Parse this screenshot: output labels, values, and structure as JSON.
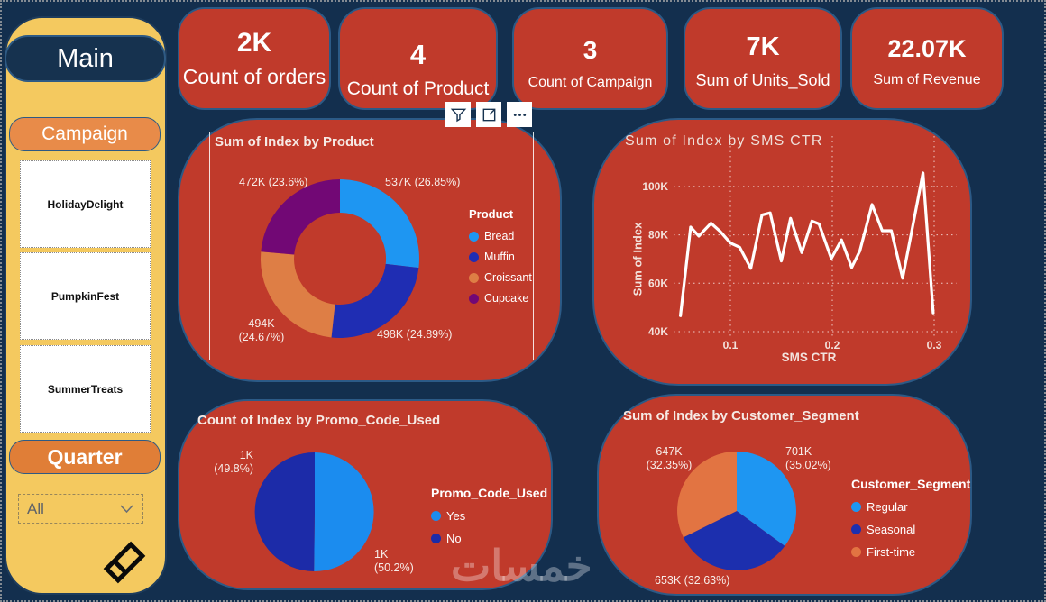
{
  "page": {
    "watermark": "خمسات"
  },
  "sidebar": {
    "main_label": "Main",
    "campaign_label": "Campaign",
    "campaign_items": [
      "HolidayDelight",
      "PumpkinFest",
      "SummerTreats"
    ],
    "quarter_label": "Quarter",
    "quarter_dropdown_value": "All"
  },
  "kpis": [
    {
      "value": "2K",
      "label": "Count of orders"
    },
    {
      "value": "4",
      "label": "Count of Product"
    },
    {
      "value": "3",
      "label": "Count of Campaign"
    },
    {
      "value": "7K",
      "label": "Sum of Units_Sold"
    },
    {
      "value": "22.07K",
      "label": "Sum of Revenue"
    }
  ],
  "toolbar": {
    "icons": [
      "filter",
      "focus-mode",
      "more-options"
    ]
  },
  "chart_data": [
    {
      "type": "donut",
      "title": "Sum of Index by Product",
      "legend_title": "Product",
      "legend_position": "right",
      "categories": [
        "Bread",
        "Muffin",
        "Croissant",
        "Cupcake"
      ],
      "values": [
        537,
        498,
        494,
        472
      ],
      "unit": "K",
      "percentages": [
        26.85,
        24.89,
        24.67,
        23.6
      ],
      "slice_labels": [
        [
          "537K (26.85%)"
        ],
        [
          "498K (24.89%)"
        ],
        [
          "494K",
          "(24.67%)"
        ],
        [
          "472K (23.6%)"
        ]
      ],
      "colors": [
        "#1E96F2",
        "#1F2DB3",
        "#DE7E45",
        "#720875"
      ]
    },
    {
      "type": "line",
      "title": "Sum of Index by SMS CTR",
      "xlabel": "SMS CTR",
      "ylabel": "Sum of Index",
      "x_ticks": {
        "values": [
          0.1,
          0.2,
          0.3
        ],
        "labels": [
          "0.1",
          "0.2",
          "0.3"
        ]
      },
      "y_ticks": {
        "values": [
          100,
          80,
          60,
          40
        ],
        "labels": [
          "100K",
          "80K",
          "60K",
          "40K"
        ]
      },
      "xlim": [
        0.04,
        0.31
      ],
      "ylim": [
        40,
        110
      ],
      "units": "K",
      "grid": "dotted",
      "line_color": "#FFFFFF",
      "points": [
        [
          0.051,
          46.6
        ],
        [
          0.061,
          83.2
        ],
        [
          0.069,
          79.5
        ],
        [
          0.081,
          84.8
        ],
        [
          0.09,
          81.4
        ],
        [
          0.1,
          76.6
        ],
        [
          0.109,
          74.9
        ],
        [
          0.12,
          66.2
        ],
        [
          0.131,
          88.2
        ],
        [
          0.139,
          89.1
        ],
        [
          0.15,
          69.2
        ],
        [
          0.159,
          86.8
        ],
        [
          0.17,
          72.7
        ],
        [
          0.18,
          85.7
        ],
        [
          0.187,
          84.5
        ],
        [
          0.199,
          70.2
        ],
        [
          0.209,
          77.9
        ],
        [
          0.219,
          66.5
        ],
        [
          0.227,
          73.3
        ],
        [
          0.239,
          92.5
        ],
        [
          0.249,
          81.7
        ],
        [
          0.258,
          81.7
        ],
        [
          0.269,
          62.1
        ],
        [
          0.289,
          105.6
        ],
        [
          0.299,
          47.8
        ]
      ]
    },
    {
      "type": "pie",
      "title": "Count of Index by Promo_Code_Used",
      "legend_title": "Promo_Code_Used",
      "legend_position": "right",
      "categories": [
        "Yes",
        "No"
      ],
      "values": [
        50.2,
        49.8
      ],
      "slice_labels": [
        [
          "1K",
          "(50.2%)"
        ],
        [
          "1K",
          "(49.8%)"
        ]
      ],
      "colors": [
        "#1B8CEF",
        "#1C2BA8"
      ]
    },
    {
      "type": "pie",
      "title": "Sum of Index by Customer_Segment",
      "legend_title": "Customer_Segment",
      "legend_position": "right",
      "categories": [
        "Regular",
        "Seasonal",
        "First-time"
      ],
      "values": [
        701,
        653,
        647
      ],
      "unit": "K",
      "percentages": [
        35.02,
        32.63,
        32.35
      ],
      "slice_labels": [
        [
          "701K",
          "(35.02%)"
        ],
        [
          "653K (32.63%)"
        ],
        [
          "647K",
          "(32.35%)"
        ]
      ],
      "colors": [
        "#1E96F2",
        "#1C2FAE",
        "#E27442"
      ]
    }
  ]
}
